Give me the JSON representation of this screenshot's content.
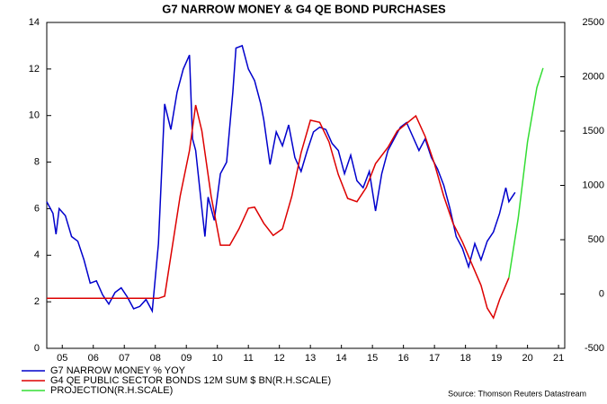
{
  "chart_data": {
    "type": "line",
    "title": "G7 NARROW MONEY & G4 QE BOND PURCHASES",
    "source": "Source: Thomson Reuters Datastream",
    "xlim": [
      2005,
      2021.7
    ],
    "xticks": [
      {
        "value": 2005.5,
        "label": "05"
      },
      {
        "value": 2006.5,
        "label": "06"
      },
      {
        "value": 2007.5,
        "label": "07"
      },
      {
        "value": 2008.5,
        "label": "08"
      },
      {
        "value": 2009.5,
        "label": "09"
      },
      {
        "value": 2010.5,
        "label": "10"
      },
      {
        "value": 2011.5,
        "label": "11"
      },
      {
        "value": 2012.5,
        "label": "12"
      },
      {
        "value": 2013.5,
        "label": "13"
      },
      {
        "value": 2014.5,
        "label": "14"
      },
      {
        "value": 2015.5,
        "label": "15"
      },
      {
        "value": 2016.5,
        "label": "16"
      },
      {
        "value": 2017.5,
        "label": "17"
      },
      {
        "value": 2018.5,
        "label": "18"
      },
      {
        "value": 2019.5,
        "label": "19"
      },
      {
        "value": 2020.5,
        "label": "20"
      },
      {
        "value": 2021.5,
        "label": "21"
      }
    ],
    "ylim": [
      0,
      14
    ],
    "yticks": [
      0,
      2,
      4,
      6,
      8,
      10,
      12,
      14
    ],
    "y2lim": [
      -500,
      2500
    ],
    "y2ticks": [
      -500,
      0,
      500,
      1000,
      1500,
      2000,
      2500
    ],
    "series": [
      {
        "name": "G7 NARROW MONEY % YOY",
        "color": "#0000cc",
        "x": [
          2005.0,
          2005.2,
          2005.3,
          2005.4,
          2005.6,
          2005.8,
          2006.0,
          2006.2,
          2006.4,
          2006.6,
          2006.8,
          2007.0,
          2007.2,
          2007.4,
          2007.6,
          2007.8,
          2008.0,
          2008.2,
          2008.4,
          2008.6,
          2008.8,
          2009.0,
          2009.2,
          2009.4,
          2009.6,
          2009.7,
          2009.8,
          2010.0,
          2010.1,
          2010.2,
          2010.4,
          2010.6,
          2010.8,
          2011.0,
          2011.1,
          2011.3,
          2011.5,
          2011.7,
          2011.9,
          2012.0,
          2012.2,
          2012.4,
          2012.6,
          2012.8,
          2013.0,
          2013.2,
          2013.4,
          2013.6,
          2013.8,
          2014.0,
          2014.2,
          2014.4,
          2014.6,
          2014.8,
          2015.0,
          2015.2,
          2015.4,
          2015.6,
          2015.8,
          2016.0,
          2016.2,
          2016.4,
          2016.6,
          2016.8,
          2017.0,
          2017.2,
          2017.4,
          2017.6,
          2017.8,
          2018.0,
          2018.2,
          2018.4,
          2018.6,
          2018.8,
          2019.0,
          2019.2,
          2019.4,
          2019.6,
          2019.8,
          2019.9,
          2020.1
        ],
        "values": [
          6.3,
          5.8,
          4.9,
          6.0,
          5.7,
          4.8,
          4.6,
          3.8,
          2.8,
          2.9,
          2.3,
          1.9,
          2.4,
          2.6,
          2.2,
          1.7,
          1.8,
          2.1,
          1.6,
          4.5,
          10.5,
          9.4,
          11.0,
          12.0,
          12.6,
          9.0,
          8.5,
          6.0,
          4.8,
          6.5,
          5.5,
          7.5,
          8.0,
          11.0,
          12.9,
          13.0,
          12.0,
          11.5,
          10.5,
          9.8,
          7.9,
          9.3,
          8.7,
          9.6,
          8.2,
          7.6,
          8.5,
          9.3,
          9.5,
          9.4,
          8.8,
          8.5,
          7.5,
          8.3,
          7.2,
          6.9,
          7.6,
          5.9,
          7.5,
          8.5,
          9.0,
          9.5,
          9.7,
          9.1,
          8.5,
          9.0,
          8.2,
          7.7,
          7.0,
          6.0,
          4.8,
          4.3,
          3.5,
          4.5,
          3.8,
          4.6,
          5.0,
          5.8,
          6.9,
          6.3,
          6.7
        ]
      },
      {
        "name": "G4 QE PUBLIC SECTOR BONDS 12M SUM $ BN(R.H.SCALE)",
        "color": "#dd0000",
        "axis": "y2",
        "x": [
          2005.0,
          2008.6,
          2008.8,
          2009.0,
          2009.3,
          2009.6,
          2009.8,
          2010.0,
          2010.3,
          2010.6,
          2010.9,
          2011.2,
          2011.5,
          2011.7,
          2012.0,
          2012.3,
          2012.6,
          2012.9,
          2013.2,
          2013.5,
          2013.8,
          2014.1,
          2014.4,
          2014.7,
          2015.0,
          2015.3,
          2015.6,
          2016.0,
          2016.3,
          2016.6,
          2016.9,
          2017.2,
          2017.5,
          2017.8,
          2018.1,
          2018.4,
          2018.7,
          2019.0,
          2019.2,
          2019.4,
          2019.6,
          2019.9
        ],
        "values": [
          -40,
          -40,
          -20,
          350,
          900,
          1320,
          1740,
          1500,
          900,
          450,
          450,
          600,
          790,
          800,
          650,
          540,
          600,
          900,
          1300,
          1600,
          1580,
          1400,
          1100,
          880,
          850,
          980,
          1200,
          1350,
          1500,
          1570,
          1640,
          1450,
          1200,
          900,
          650,
          480,
          280,
          80,
          -130,
          -220,
          -50,
          150
        ]
      },
      {
        "name": "PROJECTION(R.H.SCALE)",
        "color": "#33dd33",
        "axis": "y2",
        "x": [
          2019.9,
          2020.2,
          2020.5,
          2020.8,
          2021.0
        ],
        "values": [
          150,
          700,
          1400,
          1900,
          2080
        ]
      }
    ]
  }
}
